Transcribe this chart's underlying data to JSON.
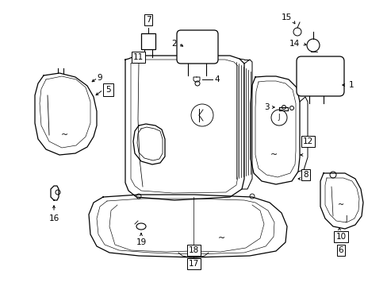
{
  "bg_color": "#ffffff",
  "line_color": "#000000",
  "figsize": [
    4.89,
    3.6
  ],
  "dpi": 100,
  "lw": 0.9
}
